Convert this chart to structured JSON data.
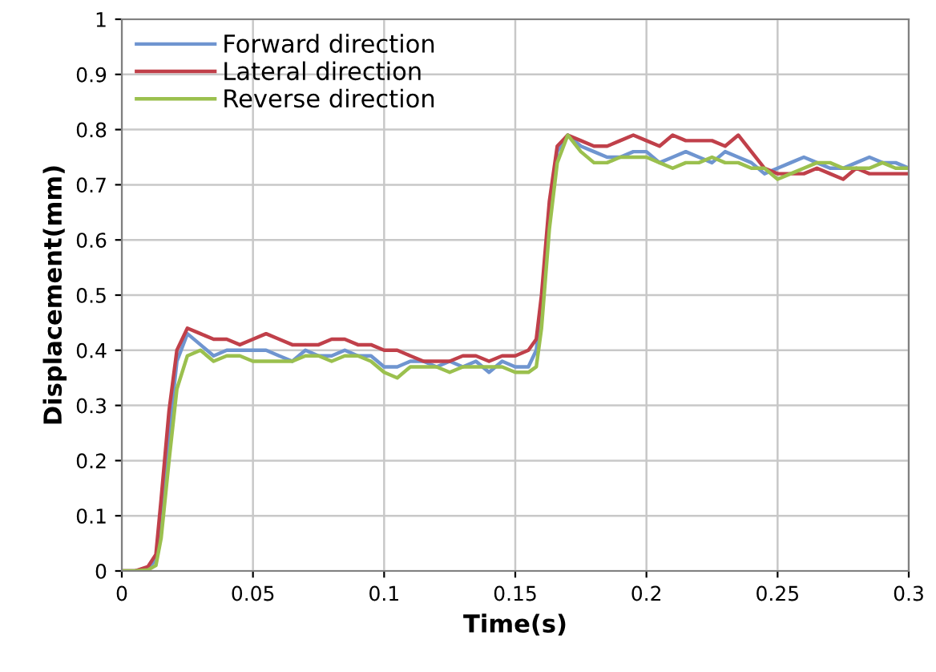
{
  "chart_data": {
    "type": "line",
    "xlabel": "Time(s)",
    "ylabel": "Displacement(mm)",
    "xlim": [
      0,
      0.3
    ],
    "xticks": [
      0,
      0.05,
      0.1,
      0.15,
      0.2,
      0.25,
      0.3
    ],
    "ylim": [
      0,
      1
    ],
    "yticks": [
      0,
      0.1,
      0.2,
      0.3,
      0.4,
      0.5,
      0.6,
      0.7,
      0.8,
      0.9,
      1
    ],
    "grid": true,
    "legend": "top left",
    "marker": "none",
    "line_style": "solid",
    "x": [
      0,
      0.005,
      0.01,
      0.013,
      0.015,
      0.018,
      0.021,
      0.025,
      0.03,
      0.035,
      0.04,
      0.045,
      0.05,
      0.055,
      0.06,
      0.065,
      0.07,
      0.075,
      0.08,
      0.085,
      0.09,
      0.095,
      0.1,
      0.105,
      0.11,
      0.115,
      0.12,
      0.125,
      0.13,
      0.135,
      0.14,
      0.145,
      0.15,
      0.155,
      0.158,
      0.16,
      0.163,
      0.166,
      0.17,
      0.175,
      0.18,
      0.185,
      0.19,
      0.195,
      0.2,
      0.205,
      0.21,
      0.215,
      0.22,
      0.225,
      0.23,
      0.235,
      0.24,
      0.245,
      0.25,
      0.255,
      0.26,
      0.265,
      0.27,
      0.275,
      0.28,
      0.285,
      0.29,
      0.295,
      0.3
    ],
    "series": [
      {
        "name": "Forward direction",
        "color": "#6f95d0",
        "values": [
          0,
          0,
          0.005,
          0.02,
          0.1,
          0.25,
          0.38,
          0.43,
          0.41,
          0.39,
          0.4,
          0.4,
          0.4,
          0.4,
          0.39,
          0.38,
          0.4,
          0.39,
          0.39,
          0.4,
          0.39,
          0.39,
          0.37,
          0.37,
          0.38,
          0.38,
          0.37,
          0.38,
          0.37,
          0.38,
          0.36,
          0.38,
          0.37,
          0.37,
          0.4,
          0.48,
          0.65,
          0.76,
          0.79,
          0.77,
          0.76,
          0.75,
          0.75,
          0.76,
          0.76,
          0.74,
          0.75,
          0.76,
          0.75,
          0.74,
          0.76,
          0.75,
          0.74,
          0.72,
          0.73,
          0.74,
          0.75,
          0.74,
          0.73,
          0.73,
          0.74,
          0.75,
          0.74,
          0.74,
          0.73
        ]
      },
      {
        "name": "Lateral direction",
        "color": "#c0404a",
        "values": [
          0,
          0,
          0.008,
          0.03,
          0.13,
          0.29,
          0.4,
          0.44,
          0.43,
          0.42,
          0.42,
          0.41,
          0.42,
          0.43,
          0.42,
          0.41,
          0.41,
          0.41,
          0.42,
          0.42,
          0.41,
          0.41,
          0.4,
          0.4,
          0.39,
          0.38,
          0.38,
          0.38,
          0.39,
          0.39,
          0.38,
          0.39,
          0.39,
          0.4,
          0.42,
          0.5,
          0.67,
          0.77,
          0.79,
          0.78,
          0.77,
          0.77,
          0.78,
          0.79,
          0.78,
          0.77,
          0.79,
          0.78,
          0.78,
          0.78,
          0.77,
          0.79,
          0.76,
          0.73,
          0.72,
          0.72,
          0.72,
          0.73,
          0.72,
          0.71,
          0.73,
          0.72,
          0.72,
          0.72,
          0.72
        ]
      },
      {
        "name": "Reverse direction",
        "color": "#9bc04e",
        "values": [
          0,
          0,
          0.002,
          0.01,
          0.06,
          0.2,
          0.33,
          0.39,
          0.4,
          0.38,
          0.39,
          0.39,
          0.38,
          0.38,
          0.38,
          0.38,
          0.39,
          0.39,
          0.38,
          0.39,
          0.39,
          0.38,
          0.36,
          0.35,
          0.37,
          0.37,
          0.37,
          0.36,
          0.37,
          0.37,
          0.37,
          0.37,
          0.36,
          0.36,
          0.37,
          0.44,
          0.62,
          0.74,
          0.79,
          0.76,
          0.74,
          0.74,
          0.75,
          0.75,
          0.75,
          0.74,
          0.73,
          0.74,
          0.74,
          0.75,
          0.74,
          0.74,
          0.73,
          0.73,
          0.71,
          0.72,
          0.73,
          0.74,
          0.74,
          0.73,
          0.73,
          0.73,
          0.74,
          0.73,
          0.73
        ]
      }
    ]
  }
}
